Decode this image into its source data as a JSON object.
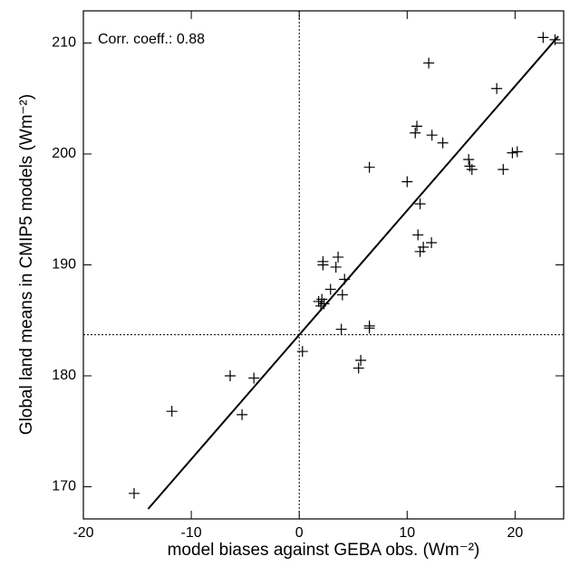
{
  "chart_data": {
    "type": "scatter",
    "x_label": "model biases against GEBA obs. (Wm⁻²)",
    "y_label": "Global land means in CMIP5 models (Wm⁻²)",
    "annotation": "Corr. coeff.:  0.88",
    "xlim": [
      -20,
      24.5
    ],
    "ylim": [
      167.1,
      212.9
    ],
    "xticks": [
      -20,
      -10,
      0,
      10,
      20
    ],
    "yticks": [
      170,
      180,
      190,
      200,
      210
    ],
    "color": "#000000",
    "reference_lines": {
      "x": 0,
      "y": 183.7
    },
    "fit": {
      "x": [
        -14.0,
        24.0
      ],
      "y": [
        168.0,
        210.6
      ]
    },
    "series": [
      {
        "name": "CMIP5 models",
        "x": [
          22.6,
          23.7,
          12.0,
          18.3,
          10.9,
          10.75,
          12.3,
          13.3,
          6.5,
          10.0,
          20.2,
          19.75,
          18.9,
          15.7,
          15.8,
          16.0,
          11.2,
          11.0,
          12.25,
          11.5,
          11.2,
          2.2,
          2.2,
          3.6,
          3.4,
          4.2,
          2.9,
          4.0,
          1.8,
          2.1,
          2.3,
          2.0,
          3.9,
          6.5,
          6.5,
          0.3,
          5.7,
          5.5,
          -6.4,
          -4.2,
          -5.3,
          -11.8,
          -15.3
        ],
        "values": [
          210.5,
          210.3,
          208.2,
          205.9,
          202.5,
          201.9,
          201.7,
          201.0,
          198.8,
          197.5,
          200.2,
          200.1,
          198.6,
          199.5,
          198.9,
          198.6,
          195.5,
          192.7,
          192.0,
          191.6,
          191.2,
          190.3,
          190.0,
          190.7,
          189.8,
          188.7,
          187.8,
          187.3,
          186.7,
          186.9,
          186.5,
          186.3,
          184.2,
          184.5,
          184.3,
          182.2,
          181.4,
          180.7,
          180.0,
          179.8,
          176.5,
          176.8,
          169.4
        ]
      }
    ]
  }
}
